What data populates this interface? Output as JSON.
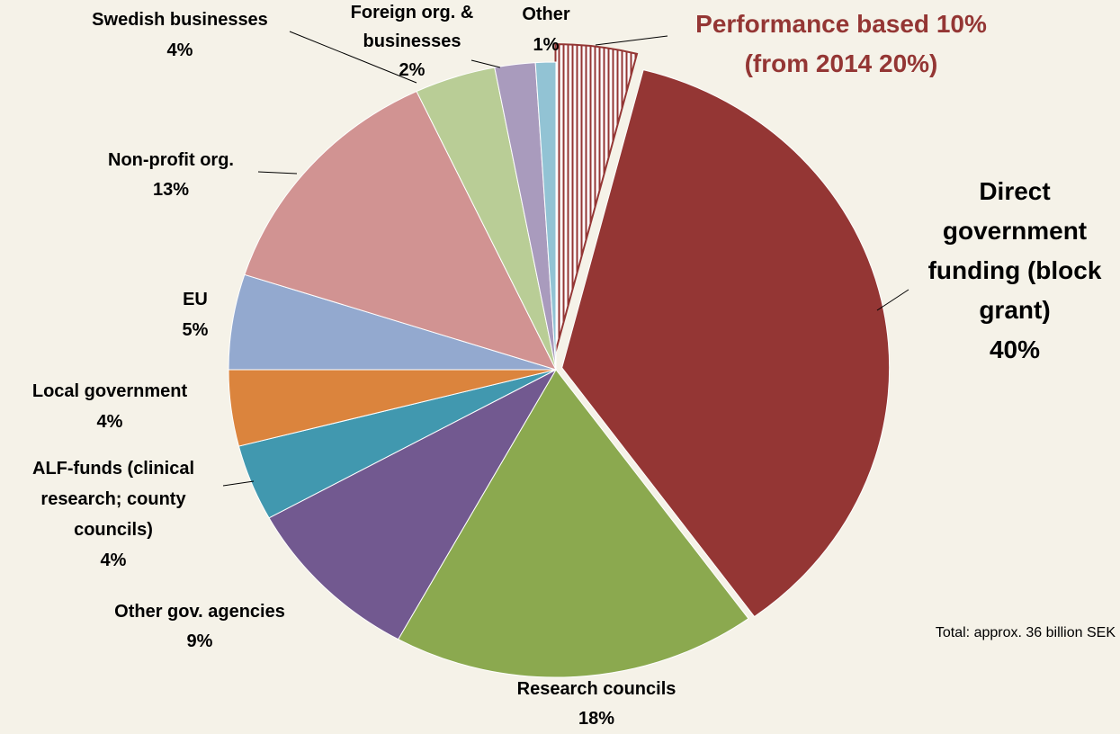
{
  "chart_data": {
    "type": "pie",
    "categories": [
      "Direct government funding (block grant)",
      "Research councils",
      "Other gov. agencies",
      "ALF-funds (clinical research; county councils)",
      "Local government",
      "EU",
      "Non-profit org.",
      "Swedish businesses",
      "Foreign org. & businesses",
      "Other"
    ],
    "values": [
      40,
      18,
      9,
      4,
      4,
      5,
      13,
      4,
      2,
      1
    ],
    "value_labels": [
      "40%",
      "18%",
      "9%",
      "4%",
      "4%",
      "5%",
      "13%",
      "4%",
      "2%",
      "1%"
    ],
    "colors": [
      "#943634",
      "#8ba94f",
      "#725990",
      "#4198af",
      "#db843d",
      "#93a9cf",
      "#d19392",
      "#b9cd96",
      "#a99bbd",
      "#92c3d4"
    ],
    "highlight": {
      "name": "Performance based",
      "value": 10,
      "value_label": "10%",
      "note": "(from 2014 20%)",
      "slice": 0,
      "color": "#943634"
    },
    "annotation": "Total: approx. 36 billion SEK"
  }
}
